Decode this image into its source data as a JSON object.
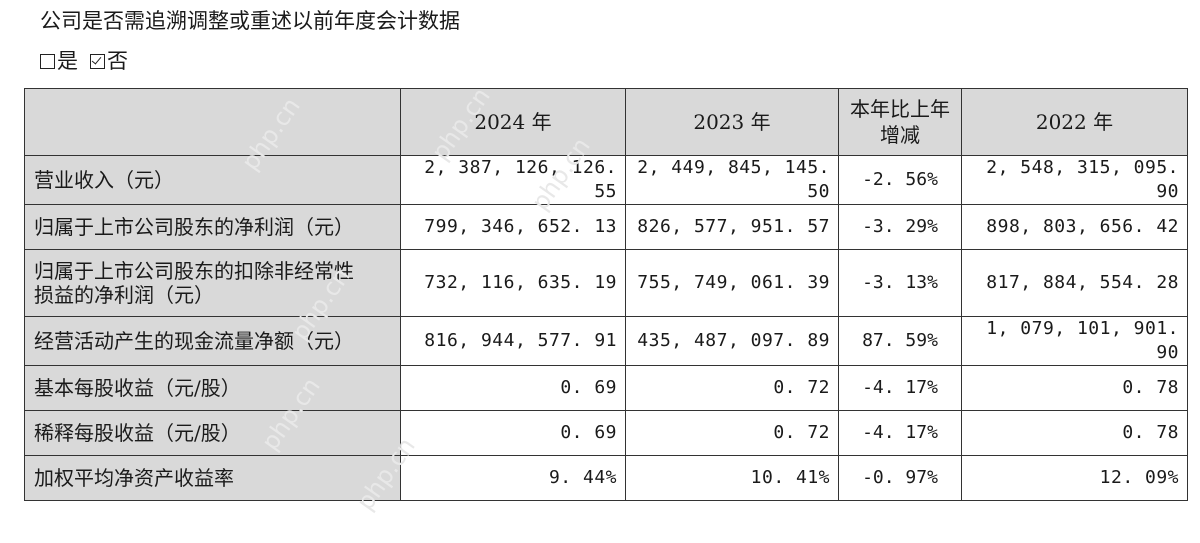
{
  "disclosure": {
    "question": "公司是否需追溯调整或重述以前年度会计数据",
    "options": [
      {
        "label": "是",
        "checked": false
      },
      {
        "label": "否",
        "checked": true
      }
    ]
  },
  "table": {
    "headers": [
      "",
      "2024 年",
      "2023 年",
      "本年比上年增减",
      "2022 年"
    ],
    "header_change_line1": "本年比上年",
    "header_change_line2": "增减",
    "rows": [
      {
        "label": "营业收入（元）",
        "y2024": "2, 387, 126, 126. 55",
        "y2023": "2, 449, 845, 145. 50",
        "change": "-2. 56%",
        "y2022": "2, 548, 315, 095. 90"
      },
      {
        "label": "归属于上市公司股东的净利润（元）",
        "y2024": "799, 346, 652. 13",
        "y2023": "826, 577, 951. 57",
        "change": "-3. 29%",
        "y2022": "898, 803, 656. 42"
      },
      {
        "label_line1": "归属于上市公司股东的扣除非经常性",
        "label_line2": "损益的净利润（元）",
        "y2024": "732, 116, 635. 19",
        "y2023": "755, 749, 061. 39",
        "change": "-3. 13%",
        "y2022": "817, 884, 554. 28"
      },
      {
        "label": "经营活动产生的现金流量净额（元）",
        "y2024": "816, 944, 577. 91",
        "y2023": "435, 487, 097. 89",
        "change": "87. 59%",
        "y2022": "1, 079, 101, 901. 90"
      },
      {
        "label": "基本每股收益（元/股）",
        "y2024": "0. 69",
        "y2023": "0. 72",
        "change": "-4. 17%",
        "y2022": "0. 78"
      },
      {
        "label": "稀释每股收益（元/股）",
        "y2024": "0. 69",
        "y2023": "0. 72",
        "change": "-4. 17%",
        "y2022": "0. 78"
      },
      {
        "label": "加权平均净资产收益率",
        "y2024": "9. 44%",
        "y2023": "10. 41%",
        "change": "-0. 97%",
        "y2022": "12. 09%"
      }
    ]
  },
  "watermark": "php.cn"
}
